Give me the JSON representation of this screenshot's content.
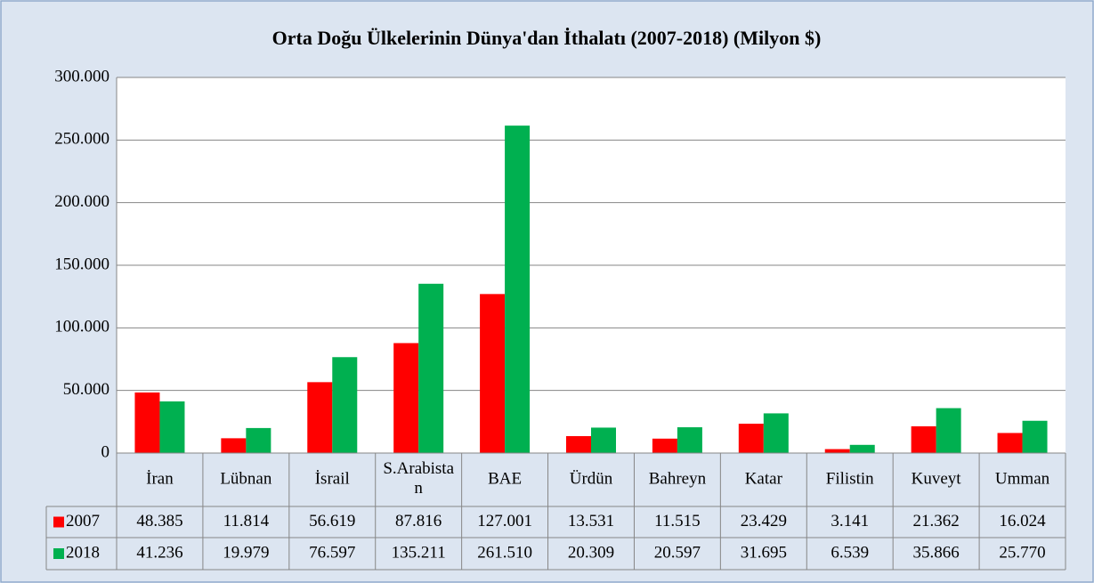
{
  "chart_data": {
    "type": "bar",
    "title": "Orta Doğu Ülkelerinin Dünya'dan İthalatı (2007-2018) (Milyon $)",
    "categories": [
      "İran",
      "Lübnan",
      "İsrail",
      "S.Arabistan",
      "BAE",
      "Ürdün",
      "Bahreyn",
      "Katar",
      "Filistin",
      "Kuveyt",
      "Umman"
    ],
    "series": [
      {
        "name": "2007",
        "color": "#ff0000",
        "values": [
          48385,
          11814,
          56619,
          87816,
          127001,
          13531,
          11515,
          23429,
          3141,
          21362,
          16024
        ],
        "value_labels": [
          "48.385",
          "11.814",
          "56.619",
          "87.816",
          "127.001",
          "13.531",
          "11.515",
          "23.429",
          "3.141",
          "21.362",
          "16.024"
        ]
      },
      {
        "name": "2018",
        "color": "#00b050",
        "values": [
          41236,
          19979,
          76597,
          135211,
          261510,
          20309,
          20597,
          31695,
          6539,
          35866,
          25770
        ],
        "value_labels": [
          "41.236",
          "19.979",
          "76.597",
          "135.211",
          "261.510",
          "20.309",
          "20.597",
          "31.695",
          "6.539",
          "35.866",
          "25.770"
        ]
      }
    ],
    "ylim": [
      0,
      300000
    ],
    "yticks": [
      0,
      {
        "value": 50000,
        "label": "50.000"
      },
      {
        "value": 100000,
        "label": "100.000"
      },
      {
        "value": 150000,
        "label": "150.000"
      },
      {
        "value": 200000,
        "label": "200.000"
      },
      {
        "value": 250000,
        "label": "250.000"
      },
      {
        "value": 300000,
        "label": "300.000"
      }
    ],
    "grid": true
  }
}
